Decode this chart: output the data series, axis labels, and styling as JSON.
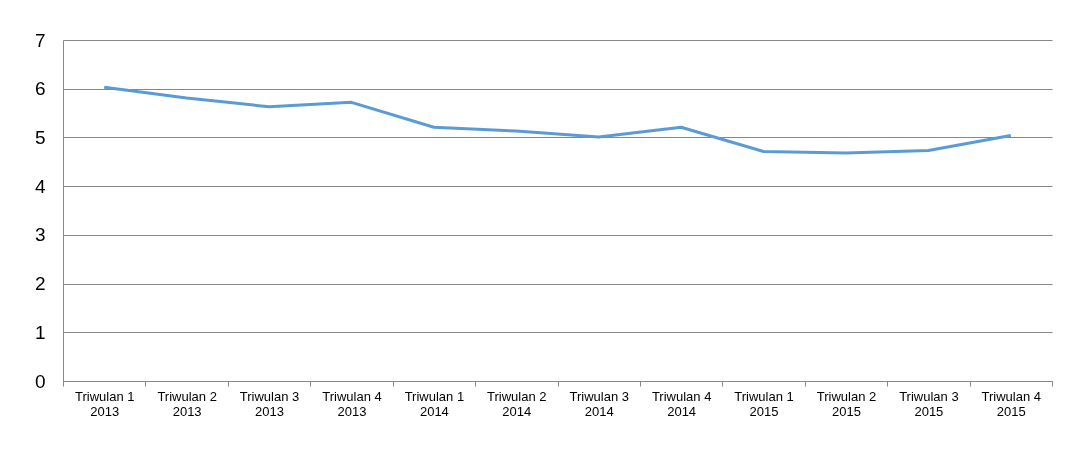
{
  "chart_data": {
    "type": "line",
    "categories": [
      "Triwulan 1\n2013",
      "Triwulan 2\n2013",
      "Triwulan 3\n2013",
      "Triwulan 4\n2013",
      "Triwulan 1\n2014",
      "Triwulan 2\n2014",
      "Triwulan 3\n2014",
      "Triwulan 4\n2014",
      "Triwulan 1\n2015",
      "Triwulan 2\n2015",
      "Triwulan 3\n2015",
      "Triwulan 4\n2015"
    ],
    "series": [
      {
        "color": "#5b9bd5",
        "values": [
          6.03,
          5.81,
          5.63,
          5.72,
          5.21,
          5.13,
          5.01,
          5.21,
          4.71,
          4.68,
          4.73,
          5.04
        ]
      }
    ],
    "ylim": [
      0,
      7
    ],
    "yticks": [
      0,
      1,
      2,
      3,
      4,
      5,
      6,
      7
    ],
    "grid": "y",
    "marker": "none",
    "line_style": "solid"
  }
}
